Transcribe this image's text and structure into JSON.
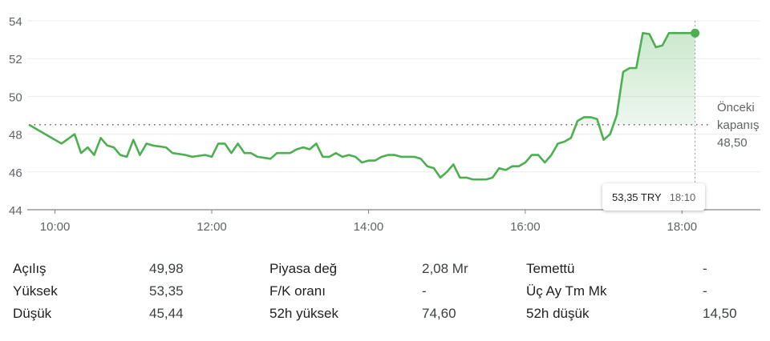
{
  "chart_data": {
    "type": "area",
    "x_ticks": [
      "10:00",
      "12:00",
      "14:00",
      "16:00",
      "18:00"
    ],
    "y_ticks": [
      "44",
      "46",
      "48",
      "50",
      "52",
      "54"
    ],
    "ylim": [
      44,
      54
    ],
    "xlim": [
      "09:40",
      "19:00"
    ],
    "previous_close": {
      "label_line1": "Önceki",
      "label_line2": "kapanış",
      "value_label": "48,50",
      "value": 48.5
    },
    "line_color": "#4caf50",
    "fill_color": "#e6f4e6",
    "points": [
      [
        "09:40",
        48.5
      ],
      [
        "10:05",
        47.5
      ],
      [
        "10:15",
        48.0
      ],
      [
        "10:20",
        47.0
      ],
      [
        "10:25",
        47.3
      ],
      [
        "10:30",
        46.9
      ],
      [
        "10:35",
        47.8
      ],
      [
        "10:40",
        47.4
      ],
      [
        "10:45",
        47.3
      ],
      [
        "10:50",
        46.9
      ],
      [
        "10:55",
        46.8
      ],
      [
        "11:00",
        47.7
      ],
      [
        "11:05",
        46.9
      ],
      [
        "11:10",
        47.5
      ],
      [
        "11:15",
        47.4
      ],
      [
        "11:25",
        47.3
      ],
      [
        "11:30",
        47.0
      ],
      [
        "11:40",
        46.9
      ],
      [
        "11:45",
        46.8
      ],
      [
        "11:55",
        46.9
      ],
      [
        "12:00",
        46.8
      ],
      [
        "12:05",
        47.5
      ],
      [
        "12:10",
        47.5
      ],
      [
        "12:15",
        47.0
      ],
      [
        "12:20",
        47.5
      ],
      [
        "12:25",
        47.0
      ],
      [
        "12:30",
        47.0
      ],
      [
        "12:35",
        46.8
      ],
      [
        "12:45",
        46.7
      ],
      [
        "12:50",
        47.0
      ],
      [
        "13:00",
        47.0
      ],
      [
        "13:05",
        47.2
      ],
      [
        "13:10",
        47.3
      ],
      [
        "13:15",
        47.2
      ],
      [
        "13:20",
        47.5
      ],
      [
        "13:25",
        46.8
      ],
      [
        "13:30",
        46.8
      ],
      [
        "13:35",
        47.0
      ],
      [
        "13:40",
        46.8
      ],
      [
        "13:45",
        46.9
      ],
      [
        "13:50",
        46.8
      ],
      [
        "13:55",
        46.5
      ],
      [
        "14:00",
        46.6
      ],
      [
        "14:05",
        46.6
      ],
      [
        "14:10",
        46.8
      ],
      [
        "14:15",
        46.9
      ],
      [
        "14:20",
        46.9
      ],
      [
        "14:25",
        46.8
      ],
      [
        "14:35",
        46.8
      ],
      [
        "14:40",
        46.7
      ],
      [
        "14:45",
        46.3
      ],
      [
        "14:50",
        46.2
      ],
      [
        "14:55",
        45.7
      ],
      [
        "15:00",
        46.0
      ],
      [
        "15:05",
        46.4
      ],
      [
        "15:10",
        45.7
      ],
      [
        "15:15",
        45.7
      ],
      [
        "15:20",
        45.6
      ],
      [
        "15:30",
        45.6
      ],
      [
        "15:35",
        45.7
      ],
      [
        "15:40",
        46.2
      ],
      [
        "15:45",
        46.1
      ],
      [
        "15:50",
        46.3
      ],
      [
        "15:55",
        46.3
      ],
      [
        "16:00",
        46.5
      ],
      [
        "16:05",
        46.9
      ],
      [
        "16:10",
        46.9
      ],
      [
        "16:15",
        46.5
      ],
      [
        "16:20",
        46.9
      ],
      [
        "16:25",
        47.5
      ],
      [
        "16:30",
        47.6
      ],
      [
        "16:35",
        47.8
      ],
      [
        "16:40",
        48.7
      ],
      [
        "16:45",
        48.9
      ],
      [
        "16:50",
        48.9
      ],
      [
        "16:55",
        48.8
      ],
      [
        "17:00",
        47.7
      ],
      [
        "17:05",
        48.0
      ],
      [
        "17:10",
        49.0
      ],
      [
        "17:15",
        51.3
      ],
      [
        "17:20",
        51.5
      ],
      [
        "17:25",
        51.5
      ],
      [
        "17:30",
        53.35
      ],
      [
        "17:35",
        53.3
      ],
      [
        "17:40",
        52.6
      ],
      [
        "17:45",
        52.7
      ],
      [
        "17:50",
        53.35
      ],
      [
        "18:10",
        53.35
      ]
    ],
    "tooltip": {
      "price": "53,35 TRY",
      "time": "18:10"
    }
  },
  "stats": [
    {
      "l1": "Açılış",
      "v1": "49,98",
      "l2": "Piyasa değ",
      "v2": "2,08 Mr",
      "l3": "Temettü",
      "v3": "-"
    },
    {
      "l1": "Yüksek",
      "v1": "53,35",
      "l2": "F/K oranı",
      "v2": "-",
      "l3": "Üç Ay Tm Mk",
      "v3": "-"
    },
    {
      "l1": "Düşük",
      "v1": "45,44",
      "l2": "52h yüksek",
      "v2": "74,60",
      "l3": "52h düşük",
      "v3": "14,50"
    }
  ]
}
